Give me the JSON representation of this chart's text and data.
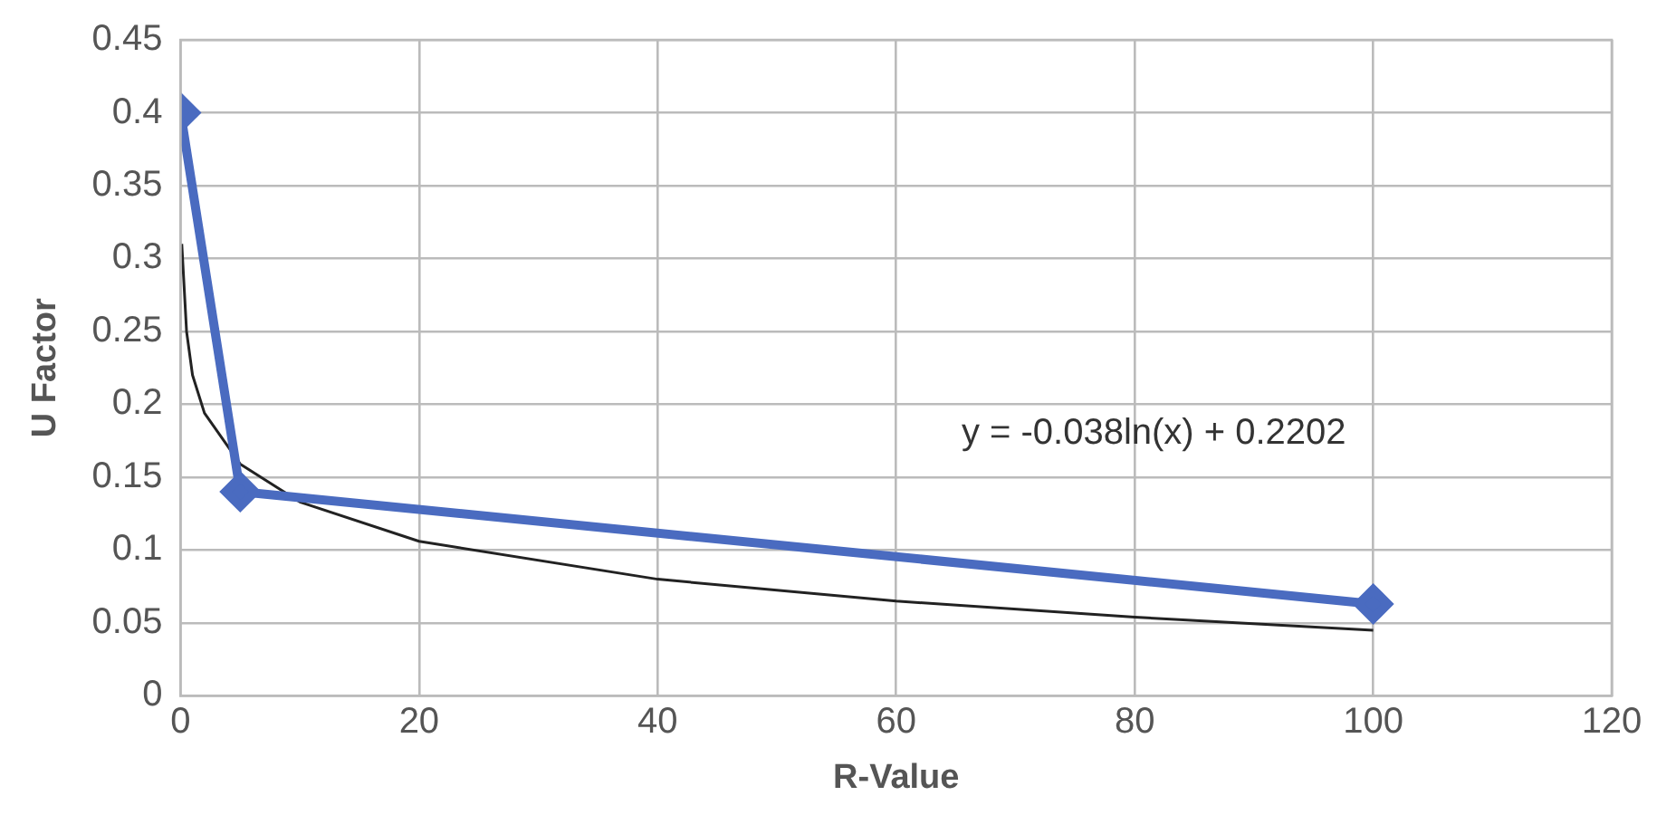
{
  "chart_data": {
    "type": "line",
    "xlabel": "R-Value",
    "ylabel": "U Factor",
    "xlim": [
      0,
      120
    ],
    "xticks": [
      0,
      20,
      40,
      60,
      80,
      100,
      120
    ],
    "ylim": [
      0,
      0.45
    ],
    "yticks": [
      0,
      0.05,
      0.1,
      0.15,
      0.2,
      0.25,
      0.3,
      0.35,
      0.4,
      0.45
    ],
    "grid": true,
    "legend": false,
    "series": [
      {
        "color": "#4a6bc0",
        "marker": "diamond",
        "x": [
          0,
          5,
          100
        ],
        "values": [
          0.4,
          0.14,
          0.063
        ]
      },
      {
        "color": "#222222",
        "marker": "none",
        "x": [
          0.1,
          0.5,
          1,
          2,
          5,
          10,
          20,
          40,
          60,
          80,
          100
        ],
        "values": [
          0.31,
          0.25,
          0.22,
          0.194,
          0.159,
          0.133,
          0.106,
          0.08,
          0.065,
          0.054,
          0.045
        ]
      }
    ],
    "annotations": [
      "y = -0.038ln(x) + 0.2202"
    ]
  }
}
